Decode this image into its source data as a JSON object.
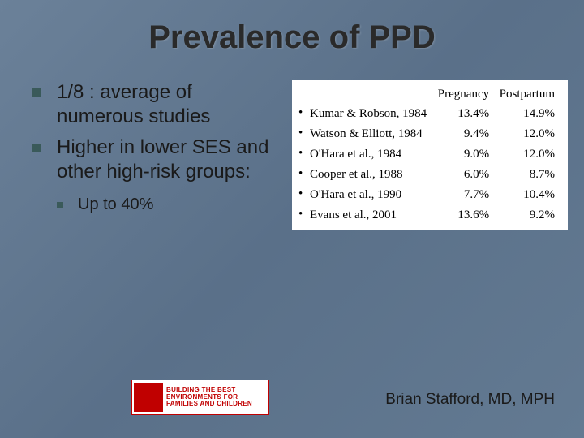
{
  "title": "Prevalence of PPD",
  "bullets": [
    "1/8 : average of numerous studies",
    "Higher in lower SES and other high-risk groups:"
  ],
  "subBullets": [
    "Up to 40%"
  ],
  "table": {
    "columns": [
      "",
      "Pregnancy",
      "Postpartum"
    ],
    "rows": [
      [
        "Kumar & Robson, 1984",
        "13.4%",
        "14.9%"
      ],
      [
        "Watson & Elliott, 1984",
        "9.4%",
        "12.0%"
      ],
      [
        "O'Hara et al., 1984",
        "9.0%",
        "12.0%"
      ],
      [
        "Cooper et al., 1988",
        "6.0%",
        "8.7%"
      ],
      [
        "O'Hara et al., 1990",
        "7.7%",
        "10.4%"
      ],
      [
        "Evans et al., 2001",
        "13.6%",
        "9.2%"
      ]
    ]
  },
  "logo": {
    "line1": "BUILDING THE BEST",
    "line2": "ENVIRONMENTS FOR",
    "line3": "FAMILIES AND CHILDREN"
  },
  "author": "Brian Stafford, MD, MPH"
}
